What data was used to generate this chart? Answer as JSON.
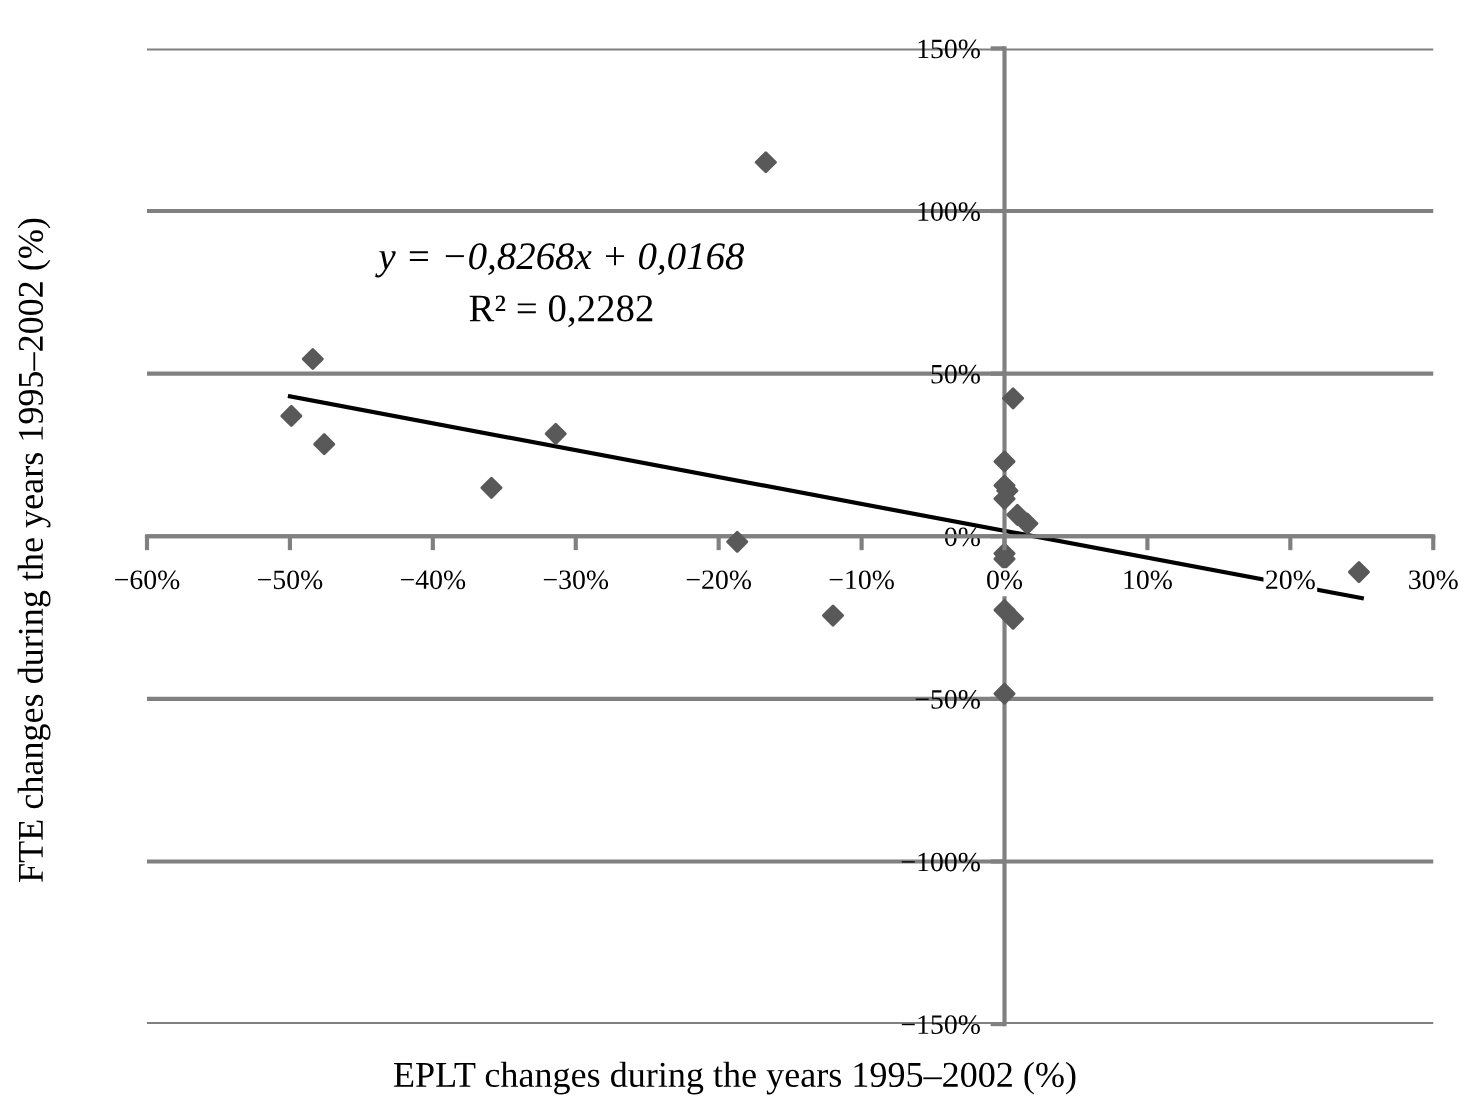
{
  "chart_data": {
    "type": "scatter",
    "xlabel": "EPLT changes during the years 1995–2002 (%)",
    "ylabel": "FTE changes during the years 1995–2002 (%)",
    "series": [
      {
        "type": "scatter",
        "color": "#595959",
        "marker": "diamond",
        "x": [
          -49.9,
          -48.4,
          -47.6,
          -35.9,
          -31.4,
          -18.7,
          -16.7,
          -12,
          0.6,
          0,
          0,
          0.2,
          0,
          0.9,
          1.6,
          0,
          0,
          0,
          0.6,
          0,
          24.8
        ],
        "values": [
          37,
          54.5,
          28.3,
          14.9,
          31.5,
          -1.7,
          115,
          -24.4,
          42.4,
          23,
          15.6,
          14,
          11.5,
          6.6,
          3.9,
          -5.3,
          -7,
          -22.7,
          -25.4,
          -48.4,
          -11
        ]
      },
      {
        "type": "line",
        "color": "#000000",
        "marker": "none",
        "line_style": "solid",
        "x": [
          -50,
          25
        ],
        "values": [
          43,
          -19
        ]
      }
    ],
    "annotations": [
      "y = −0,8268x + 0,0168",
      "R² = 0,2282"
    ],
    "xlim": [
      -60,
      30
    ],
    "ylim": [
      -150,
      150
    ],
    "xticks": [
      {
        "value": -60,
        "label": "−60%"
      },
      {
        "value": -50,
        "label": "−50%"
      },
      {
        "value": -40,
        "label": "−40%"
      },
      {
        "value": -30,
        "label": "−30%"
      },
      {
        "value": -20,
        "label": "−20%"
      },
      {
        "value": -10,
        "label": "−10%"
      },
      {
        "value": 0,
        "label": "0%"
      },
      {
        "value": 10,
        "label": "10%"
      },
      {
        "value": 20,
        "label": "20%"
      },
      {
        "value": 30,
        "label": "30%"
      }
    ],
    "yticks": [
      {
        "value": -150,
        "label": "−150%"
      },
      {
        "value": -100,
        "label": "−100%"
      },
      {
        "value": -50,
        "label": "−50%"
      },
      {
        "value": 0,
        "label": "0%"
      },
      {
        "value": 50,
        "label": "50%"
      },
      {
        "value": 100,
        "label": "100%"
      },
      {
        "value": 150,
        "label": "150%"
      }
    ],
    "grid": "y",
    "legend": false
  }
}
